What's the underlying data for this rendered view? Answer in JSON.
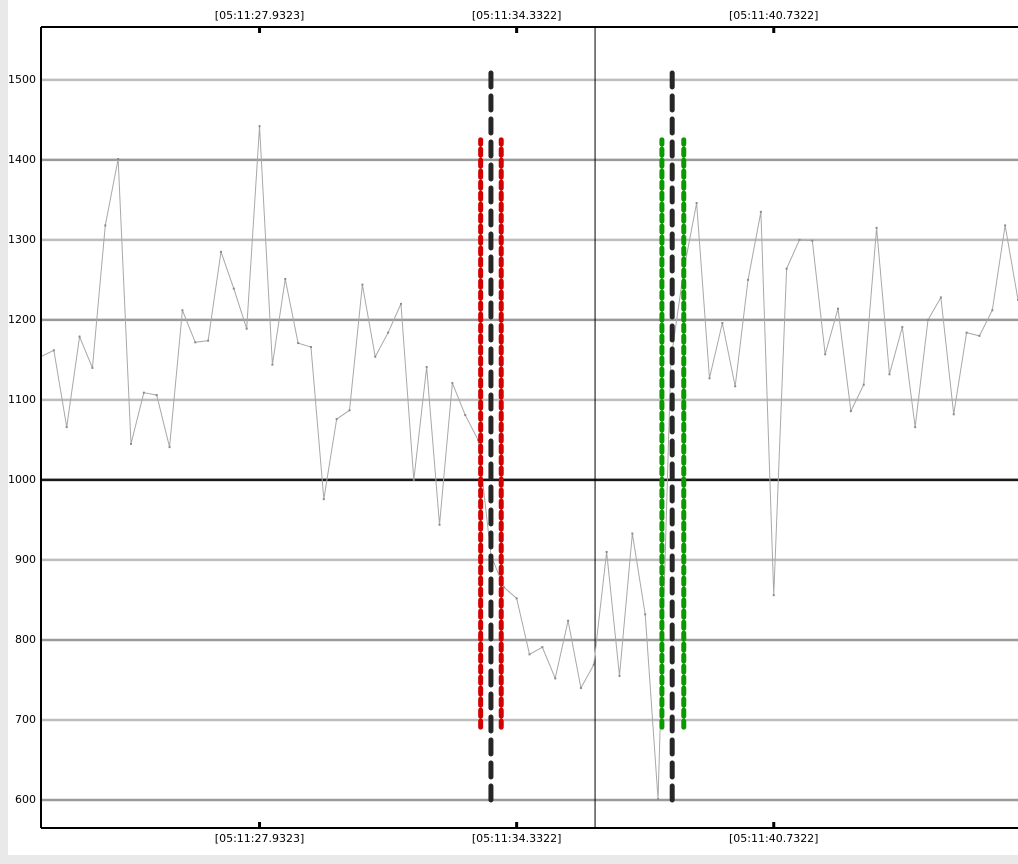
{
  "chart_data": {
    "type": "line",
    "values": [
      1154,
      1162,
      1066,
      1179,
      1140,
      1318,
      1401,
      1045,
      1109,
      1106,
      1041,
      1212,
      1172,
      1174,
      1285,
      1239,
      1189,
      1442,
      1144,
      1251,
      1171,
      1166,
      976,
      1076,
      1087,
      1244,
      1154,
      1184,
      1220,
      1000,
      1141,
      944,
      1121,
      1081,
      1050,
      906,
      866,
      852,
      782,
      791,
      752,
      824,
      740,
      769,
      910,
      755,
      933,
      832,
      601,
      1150,
      1262,
      1346,
      1127,
      1196,
      1117,
      1250,
      1335,
      856,
      1264,
      1300,
      1299,
      1157,
      1214,
      1086,
      1119,
      1315,
      1132,
      1191,
      1066,
      1200,
      1228,
      1082,
      1184,
      1180,
      1212,
      1318,
      1225
    ],
    "color": "#a8a8a8",
    "xlim": [
      0,
      76
    ],
    "ylim": [
      565,
      1566
    ],
    "xticks": [
      {
        "value": 17,
        "label": "[05:11:27.9323]"
      },
      {
        "value": 37,
        "label": "[05:11:34.3322]"
      },
      {
        "value": 57,
        "label": "[05:11:40.7322]"
      }
    ],
    "yticks": [
      600,
      700,
      800,
      900,
      1000,
      1100,
      1200,
      1300,
      1400,
      1500
    ],
    "grid": true,
    "baseline": 1000,
    "cursor_x": 43.1,
    "markers": [
      {
        "x": 34.2,
        "y": [
          691,
          1425
        ],
        "color": "#d40000",
        "style": "dotted"
      },
      {
        "x": 35.8,
        "y": [
          691,
          1425
        ],
        "color": "#d40000",
        "style": "dotted"
      },
      {
        "x": 35,
        "y": [
          600,
          1519
        ],
        "color": "#262626",
        "style": "dashed"
      },
      {
        "x": 48.3,
        "y": [
          691,
          1425
        ],
        "color": "#0a9a00",
        "style": "dotted"
      },
      {
        "x": 50,
        "y": [
          691,
          1425
        ],
        "color": "#0a9a00",
        "style": "dotted"
      },
      {
        "x": 49.1,
        "y": [
          600,
          1519
        ],
        "color": "#262626",
        "style": "dashed"
      }
    ]
  }
}
